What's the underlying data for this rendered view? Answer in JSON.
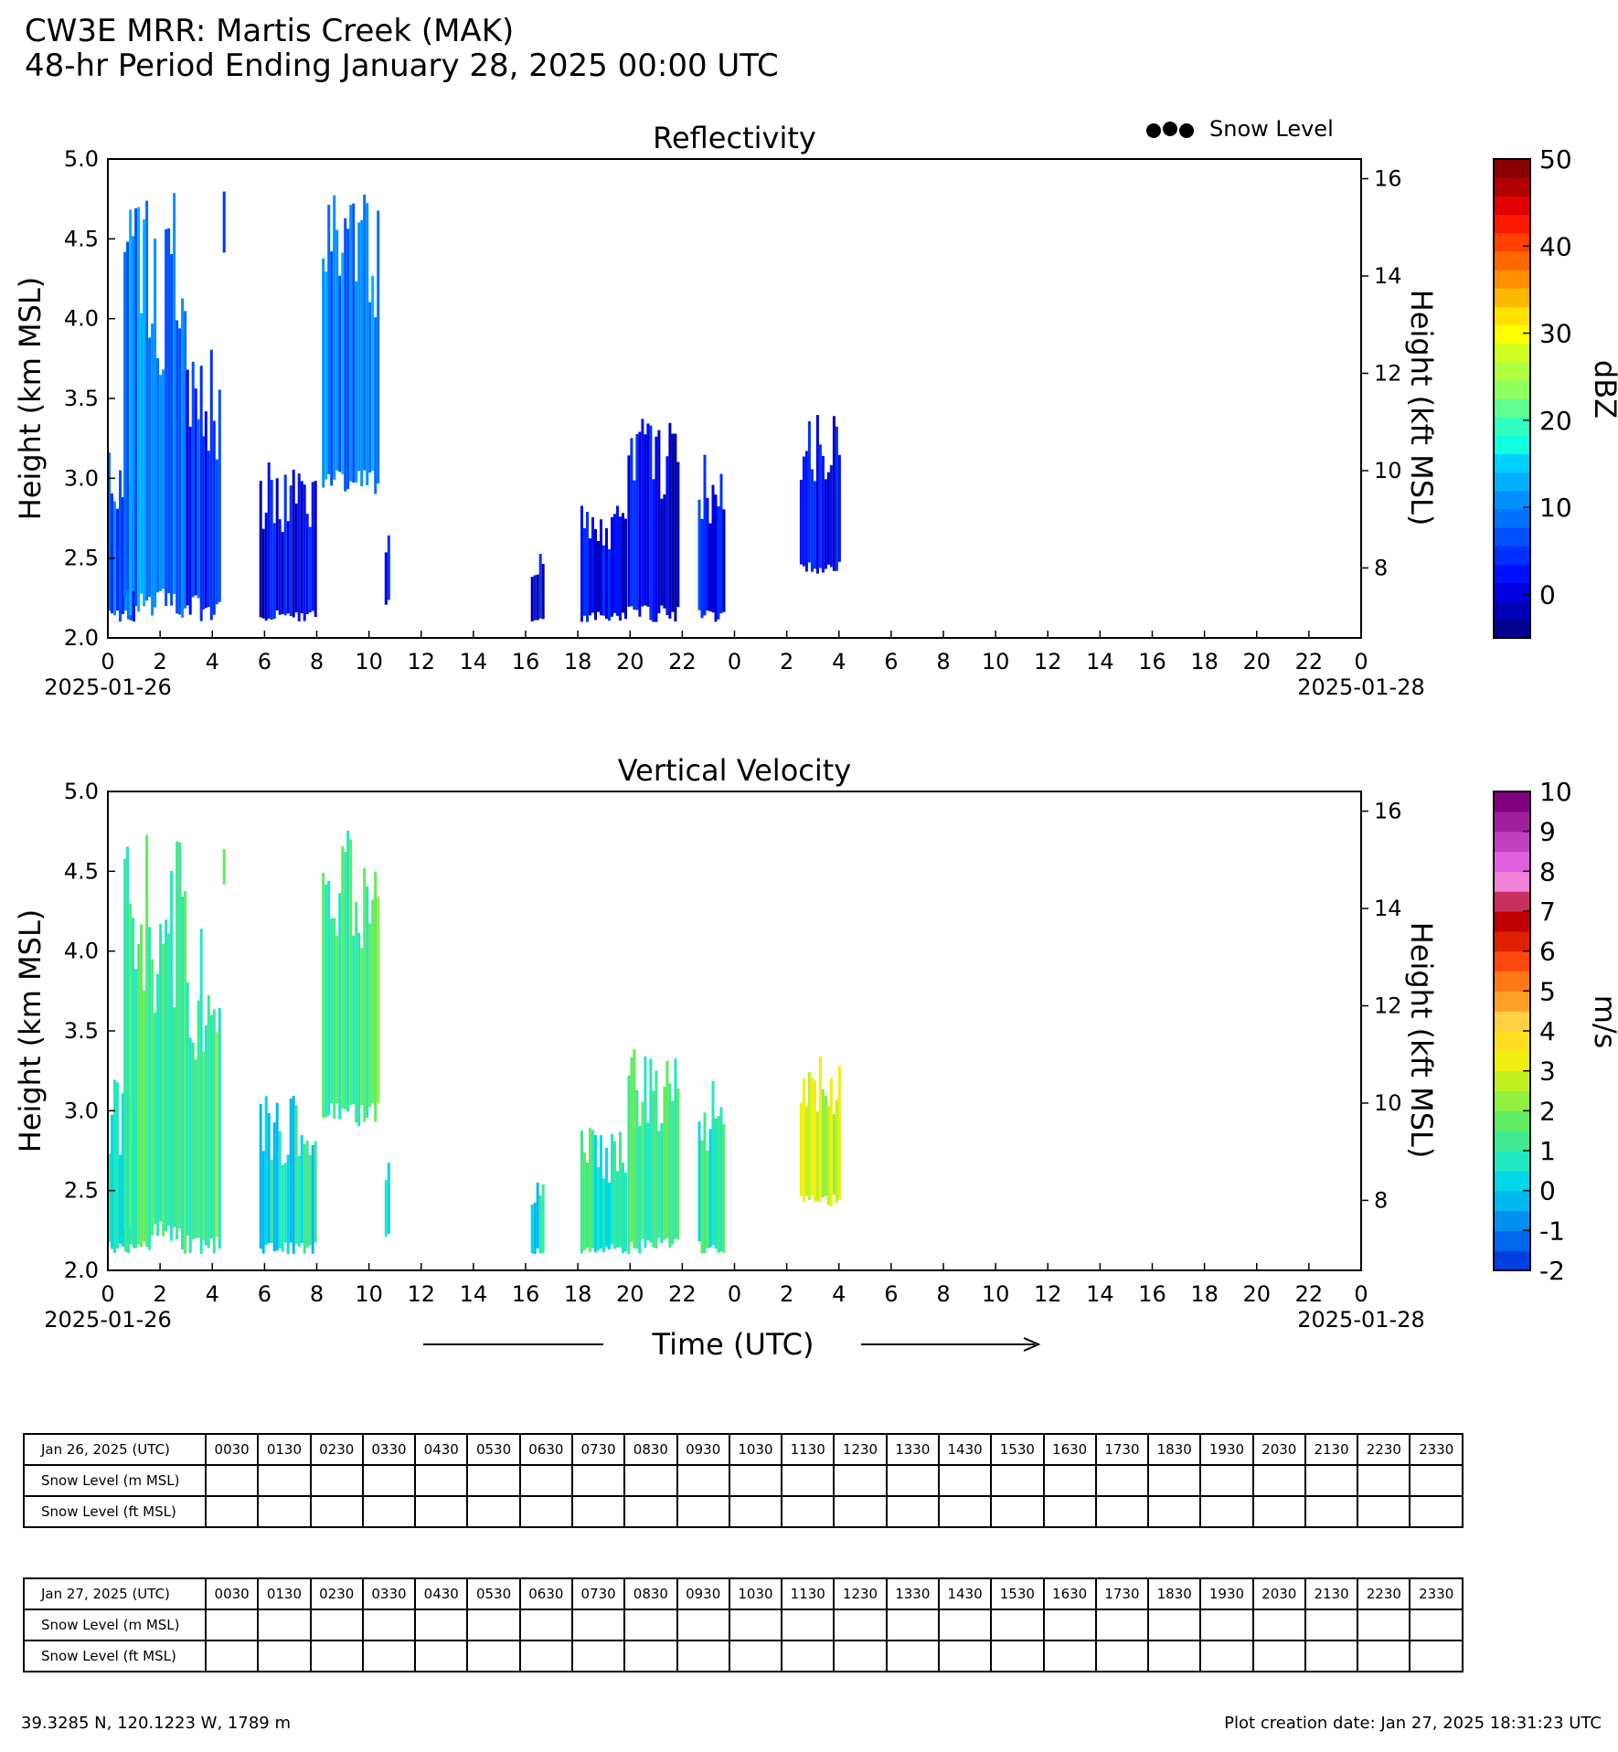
{
  "header": {
    "title": "CW3E MRR: Martis Creek (MAK)",
    "subtitle": "48-hr Period Ending January 28, 2025 00:00 UTC"
  },
  "legend": {
    "snow_level_label": "Snow Level"
  },
  "time_axis_label": "Time (UTC)",
  "chart_data": [
    {
      "type": "heatmap",
      "title": "Reflectivity",
      "ylabel": "Height (km MSL)",
      "ylabel_right": "Height (kft MSL)",
      "ylim": [
        2.0,
        5.0
      ],
      "yticks": [
        "2.0",
        "2.5",
        "3.0",
        "3.5",
        "4.0",
        "4.5",
        "5.0"
      ],
      "yticks_right": [
        "8",
        "10",
        "12",
        "14",
        "16"
      ],
      "xlim_hours": [
        0,
        48
      ],
      "xticks": [
        "0",
        "2",
        "4",
        "6",
        "8",
        "10",
        "12",
        "14",
        "16",
        "18",
        "20",
        "22",
        "0",
        "2",
        "4",
        "6",
        "8",
        "10",
        "12",
        "14",
        "16",
        "18",
        "20",
        "22",
        "0"
      ],
      "date_labels": [
        "2025-01-26",
        "2025-01-28"
      ],
      "colorbar": {
        "label": "dBZ",
        "min": -5,
        "max": 50,
        "ticks": [
          "0",
          "10",
          "20",
          "30",
          "40",
          "50"
        ]
      },
      "echo_regions": [
        {
          "start_hr": 0.0,
          "end_hr": 1.0,
          "bottom_km": 2.1,
          "top_km": 3.2,
          "value": 7
        },
        {
          "start_hr": 0.6,
          "end_hr": 3.0,
          "bottom_km": 2.1,
          "top_km": 4.8,
          "value": 10
        },
        {
          "start_hr": 3.0,
          "end_hr": 3.6,
          "bottom_km": 2.1,
          "top_km": 4.2,
          "value": 5
        },
        {
          "start_hr": 3.6,
          "end_hr": 4.3,
          "bottom_km": 2.1,
          "top_km": 3.9,
          "value": 3
        },
        {
          "start_hr": 4.4,
          "end_hr": 4.5,
          "bottom_km": 4.4,
          "top_km": 4.8,
          "value": 6
        },
        {
          "start_hr": 5.8,
          "end_hr": 8.0,
          "bottom_km": 2.1,
          "top_km": 3.1,
          "value": 1
        },
        {
          "start_hr": 8.2,
          "end_hr": 10.4,
          "bottom_km": 2.9,
          "top_km": 4.8,
          "value": 10
        },
        {
          "start_hr": 10.6,
          "end_hr": 10.8,
          "bottom_km": 2.2,
          "top_km": 2.7,
          "value": 2
        },
        {
          "start_hr": 16.2,
          "end_hr": 16.7,
          "bottom_km": 2.1,
          "top_km": 2.6,
          "value": 0
        },
        {
          "start_hr": 18.1,
          "end_hr": 19.8,
          "bottom_km": 2.1,
          "top_km": 2.9,
          "value": 1
        },
        {
          "start_hr": 19.9,
          "end_hr": 21.8,
          "bottom_km": 2.1,
          "top_km": 3.4,
          "value": 1
        },
        {
          "start_hr": 22.6,
          "end_hr": 23.6,
          "bottom_km": 2.1,
          "top_km": 3.2,
          "value": 2
        },
        {
          "start_hr": 26.5,
          "end_hr": 28.0,
          "bottom_km": 2.4,
          "top_km": 3.4,
          "value": 1
        }
      ]
    },
    {
      "type": "heatmap",
      "title": "Vertical Velocity",
      "ylabel": "Height (km MSL)",
      "ylabel_right": "Height (kft MSL)",
      "ylim": [
        2.0,
        5.0
      ],
      "yticks": [
        "2.0",
        "2.5",
        "3.0",
        "3.5",
        "4.0",
        "4.5",
        "5.0"
      ],
      "yticks_right": [
        "8",
        "10",
        "12",
        "14",
        "16"
      ],
      "xlim_hours": [
        0,
        48
      ],
      "xticks": [
        "0",
        "2",
        "4",
        "6",
        "8",
        "10",
        "12",
        "14",
        "16",
        "18",
        "20",
        "22",
        "0",
        "2",
        "4",
        "6",
        "8",
        "10",
        "12",
        "14",
        "16",
        "18",
        "20",
        "22",
        "0"
      ],
      "date_labels": [
        "2025-01-26",
        "2025-01-28"
      ],
      "colorbar": {
        "label": "m/s",
        "min": -2,
        "max": 10,
        "ticks": [
          "-2",
          "-1",
          "0",
          "1",
          "2",
          "3",
          "4",
          "5",
          "6",
          "7",
          "8",
          "9",
          "10"
        ]
      },
      "echo_regions": [
        {
          "start_hr": 0.0,
          "end_hr": 1.0,
          "bottom_km": 2.1,
          "top_km": 3.2,
          "value": 0.5
        },
        {
          "start_hr": 0.6,
          "end_hr": 3.0,
          "bottom_km": 2.1,
          "top_km": 4.8,
          "value": 1.2
        },
        {
          "start_hr": 3.0,
          "end_hr": 3.6,
          "bottom_km": 2.1,
          "top_km": 4.2,
          "value": 1.0
        },
        {
          "start_hr": 3.6,
          "end_hr": 4.3,
          "bottom_km": 2.1,
          "top_km": 3.9,
          "value": 1.3
        },
        {
          "start_hr": 4.4,
          "end_hr": 4.5,
          "bottom_km": 4.4,
          "top_km": 4.8,
          "value": 1.5
        },
        {
          "start_hr": 5.8,
          "end_hr": 8.0,
          "bottom_km": 2.1,
          "top_km": 3.1,
          "value": 0.5
        },
        {
          "start_hr": 8.2,
          "end_hr": 10.4,
          "bottom_km": 2.9,
          "top_km": 4.8,
          "value": 1.4
        },
        {
          "start_hr": 10.6,
          "end_hr": 10.8,
          "bottom_km": 2.2,
          "top_km": 2.7,
          "value": 0.7
        },
        {
          "start_hr": 16.2,
          "end_hr": 16.7,
          "bottom_km": 2.1,
          "top_km": 2.6,
          "value": 0.6
        },
        {
          "start_hr": 18.1,
          "end_hr": 19.8,
          "bottom_km": 2.1,
          "top_km": 2.9,
          "value": 0.8
        },
        {
          "start_hr": 19.9,
          "end_hr": 21.8,
          "bottom_km": 2.1,
          "top_km": 3.4,
          "value": 1.1
        },
        {
          "start_hr": 22.6,
          "end_hr": 23.6,
          "bottom_km": 2.1,
          "top_km": 3.2,
          "value": 1.0
        },
        {
          "start_hr": 26.5,
          "end_hr": 28.0,
          "bottom_km": 2.4,
          "top_km": 3.4,
          "value": 2.8
        }
      ]
    }
  ],
  "snow_level_tables": [
    {
      "date_label": "Jan 26, 2025 (UTC)",
      "row_labels": [
        "Snow Level (m MSL)",
        "Snow Level (ft MSL)"
      ],
      "times": [
        "0030",
        "0130",
        "0230",
        "0330",
        "0430",
        "0530",
        "0630",
        "0730",
        "0830",
        "0930",
        "1030",
        "1130",
        "1230",
        "1330",
        "1430",
        "1530",
        "1630",
        "1730",
        "1830",
        "1930",
        "2030",
        "2130",
        "2230",
        "2330"
      ]
    },
    {
      "date_label": "Jan 27, 2025 (UTC)",
      "row_labels": [
        "Snow Level (m MSL)",
        "Snow Level (ft MSL)"
      ],
      "times": [
        "0030",
        "0130",
        "0230",
        "0330",
        "0430",
        "0530",
        "0630",
        "0730",
        "0830",
        "0930",
        "1030",
        "1130",
        "1230",
        "1330",
        "1430",
        "1530",
        "1630",
        "1730",
        "1830",
        "1930",
        "2030",
        "2130",
        "2230",
        "2330"
      ]
    }
  ],
  "footer": {
    "location": "39.3285 N, 120.1223 W, 1789 m",
    "creation": "Plot creation date: Jan 27, 2025 18:31:23 UTC"
  }
}
